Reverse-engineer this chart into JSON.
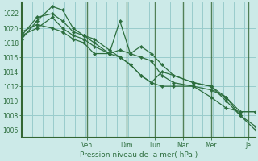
{
  "background_color": "#cceae8",
  "grid_color": "#99cccc",
  "line_color": "#2d6e3e",
  "spine_color": "#336633",
  "title": "Pression niveau de la mer( hPa )",
  "ylim": [
    1005.0,
    1023.5
  ],
  "yticks": [
    1006,
    1008,
    1010,
    1012,
    1014,
    1016,
    1018,
    1020,
    1022
  ],
  "day_labels": [
    "Ven",
    "Dim",
    "Lun",
    "Mar",
    "Mer",
    "Je"
  ],
  "day_x": [
    0.28,
    0.45,
    0.57,
    0.69,
    0.81,
    0.97
  ],
  "xlim": [
    0,
    1.0
  ],
  "series": [
    {
      "x": [
        0.0,
        0.065,
        0.13,
        0.175,
        0.22,
        0.265,
        0.31,
        0.375,
        0.42,
        0.465,
        0.51,
        0.555,
        0.6,
        0.65,
        0.735,
        0.81,
        0.875,
        0.935,
        1.0
      ],
      "y": [
        1019.0,
        1021.5,
        1022.0,
        1021.0,
        1019.5,
        1019.0,
        1018.0,
        1016.5,
        1021.0,
        1016.5,
        1017.5,
        1016.5,
        1015.0,
        1013.5,
        1012.5,
        1012.0,
        1010.5,
        1008.0,
        1006.0
      ]
    },
    {
      "x": [
        0.0,
        0.065,
        0.13,
        0.175,
        0.22,
        0.265,
        0.31,
        0.375,
        0.42,
        0.465,
        0.51,
        0.555,
        0.6,
        0.65,
        0.735,
        0.81,
        0.875,
        0.935,
        1.0
      ],
      "y": [
        1018.5,
        1021.0,
        1023.0,
        1022.5,
        1020.0,
        1019.0,
        1018.5,
        1017.0,
        1016.0,
        1015.0,
        1013.5,
        1012.5,
        1014.0,
        1013.5,
        1012.5,
        1012.0,
        1010.0,
        1008.0,
        1006.5
      ]
    },
    {
      "x": [
        0.0,
        0.065,
        0.13,
        0.175,
        0.22,
        0.265,
        0.31,
        0.375,
        0.42,
        0.465,
        0.51,
        0.555,
        0.6,
        0.65,
        0.735,
        0.81,
        0.875,
        0.935,
        1.0
      ],
      "y": [
        1019.0,
        1020.0,
        1021.5,
        1020.0,
        1019.0,
        1018.5,
        1017.5,
        1016.5,
        1017.0,
        1016.5,
        1016.0,
        1015.5,
        1013.5,
        1012.5,
        1012.0,
        1011.5,
        1010.5,
        1008.5,
        1008.5
      ]
    },
    {
      "x": [
        0.0,
        0.065,
        0.13,
        0.175,
        0.22,
        0.265,
        0.31,
        0.375,
        0.42,
        0.465,
        0.51,
        0.555,
        0.6,
        0.65,
        0.735,
        0.81,
        0.875,
        0.935,
        1.0
      ],
      "y": [
        1019.5,
        1020.5,
        1020.0,
        1019.5,
        1018.5,
        1018.0,
        1016.5,
        1016.5,
        1016.0,
        1015.0,
        1013.5,
        1012.5,
        1012.0,
        1012.0,
        1012.0,
        1010.5,
        1009.0,
        1008.5,
        1008.5
      ]
    }
  ]
}
